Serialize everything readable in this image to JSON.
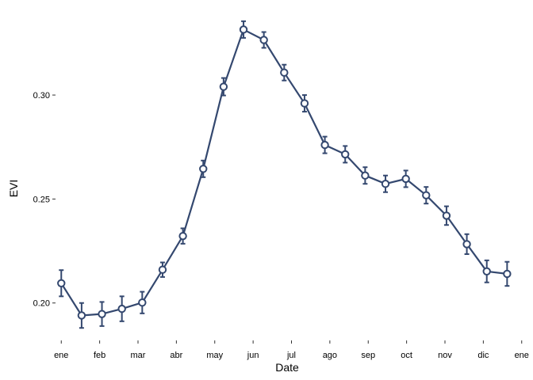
{
  "chart_data": {
    "type": "line",
    "title": "",
    "xlabel": "Date",
    "ylabel": "EVI",
    "ylim": [
      0.182,
      0.34
    ],
    "xlim": [
      -0.15,
      12.15
    ],
    "y_ticks": [
      0.2,
      0.25,
      0.3
    ],
    "y_tick_labels": [
      "0.20",
      "0.25",
      "0.30"
    ],
    "x_tick_positions": [
      0,
      1,
      2,
      3,
      4,
      5,
      6,
      7,
      8,
      9,
      10,
      11,
      12
    ],
    "x_tick_labels": [
      "ene",
      "feb",
      "mar",
      "abr",
      "may",
      "jun",
      "jul",
      "ago",
      "sep",
      "oct",
      "nov",
      "dic",
      "ene"
    ],
    "grid": false,
    "series": [
      {
        "x": [
          0.0,
          0.53,
          1.06,
          1.58,
          2.11,
          2.64,
          3.17,
          3.7,
          4.23,
          4.75,
          5.28,
          5.81,
          6.34,
          6.87,
          7.4,
          7.92,
          8.45,
          8.98,
          9.51,
          10.04,
          10.57,
          11.09,
          11.62
        ],
        "y": [
          0.2095,
          0.194,
          0.1947,
          0.1972,
          0.2002,
          0.216,
          0.2322,
          0.2645,
          0.304,
          0.3315,
          0.3265,
          0.3108,
          0.296,
          0.276,
          0.2715,
          0.2613,
          0.2573,
          0.2597,
          0.2518,
          0.242,
          0.2283,
          0.2152,
          0.214
        ],
        "err": [
          0.0063,
          0.006,
          0.0058,
          0.006,
          0.0052,
          0.0035,
          0.0037,
          0.004,
          0.0042,
          0.004,
          0.0038,
          0.0038,
          0.004,
          0.004,
          0.004,
          0.004,
          0.004,
          0.004,
          0.004,
          0.0045,
          0.0048,
          0.0053,
          0.0058
        ]
      }
    ]
  },
  "colors": {
    "series": "#34486f",
    "marker_fill": "#ffffff",
    "tick": "#333333",
    "text": "#000000",
    "background": "#ffffff"
  }
}
